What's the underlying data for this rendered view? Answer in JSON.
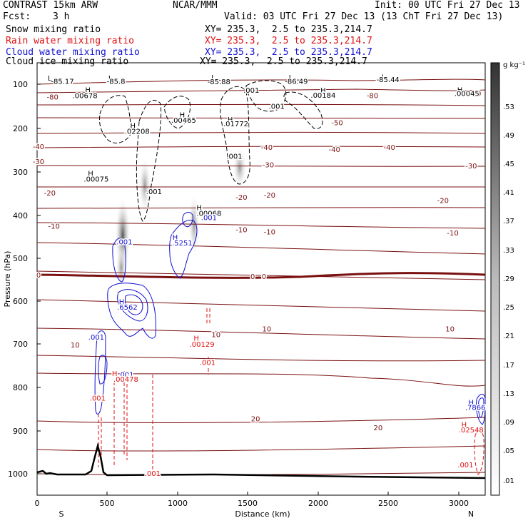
{
  "header": {
    "title": "CONTRAST 15km ARW",
    "org": "NCAR/MMM",
    "init": "Init: 00 UTC Fri 27 Dec 13",
    "fcst_label": "Fcst:",
    "fcst_value": "3 h",
    "valid": "Valid: 03 UTC Fri 27 Dec 13 (13 ChT Fri 27 Dec 13)",
    "fields": [
      {
        "name": "Snow mixing ratio",
        "xy": "XY= 235.3,  2.5 to 235.3,214.7",
        "color": "#000000"
      },
      {
        "name": "Rain water mixing ratio",
        "xy": "XY= 235.3,  2.5 to 235.3,214.7",
        "color": "#e01010"
      },
      {
        "name": "Cloud water mixing ratio",
        "xy": "XY= 235.3,  2.5 to 235.3,214.7",
        "color": "#1010d0"
      },
      {
        "name": "Cloud ice mixing ratio",
        "xy": "XY= 235.3,  2.5 to 235.3,214.7",
        "color": "#000000"
      }
    ]
  },
  "chart_data": {
    "type": "cross-section contour",
    "xlabel": "Distance (km)",
    "ylabel": "Pressure (hPa)",
    "xlim": [
      0,
      3180
    ],
    "ylim": [
      1050,
      50
    ],
    "xticks": [
      "0",
      "500",
      "1000",
      "1500",
      "2000",
      "2500",
      "3000"
    ],
    "yticks": [
      "100",
      "200",
      "300",
      "400",
      "500",
      "600",
      "700",
      "800",
      "900",
      "1000"
    ],
    "end_labels": {
      "left": "S",
      "right": "N"
    },
    "colorbar": {
      "unit": "g kg⁻¹",
      "ticks": [
        ".53",
        ".49",
        ".45",
        ".41",
        ".37",
        ".33",
        ".29",
        ".25",
        ".21",
        ".17",
        ".13",
        ".09",
        ".05",
        ".01"
      ]
    },
    "temperature_labels": [
      {
        "text": "-80",
        "x": 110,
        "p": 128
      },
      {
        "text": "-80",
        "x": 2380,
        "p": 125
      },
      {
        "text": "-80",
        "x": 3110,
        "p": 120
      },
      {
        "text": "-50",
        "x": 2130,
        "p": 188
      },
      {
        "text": "-40",
        "x": 0,
        "p": 243
      },
      {
        "text": "-40",
        "x": 1630,
        "p": 245
      },
      {
        "text": "-40",
        "x": 2110,
        "p": 250
      },
      {
        "text": "-40",
        "x": 2500,
        "p": 245
      },
      {
        "text": "-30",
        "x": 0,
        "p": 278
      },
      {
        "text": "-30",
        "x": 1640,
        "p": 285
      },
      {
        "text": "-30",
        "x": 3080,
        "p": 288
      },
      {
        "text": "-20",
        "x": 90,
        "p": 350
      },
      {
        "text": "-20",
        "x": 1450,
        "p": 360
      },
      {
        "text": "-20",
        "x": 1650,
        "p": 355
      },
      {
        "text": "-20",
        "x": 2880,
        "p": 368
      },
      {
        "text": "-10",
        "x": 120,
        "p": 427
      },
      {
        "text": "-10",
        "x": 1450,
        "p": 435
      },
      {
        "text": "-10",
        "x": 1650,
        "p": 440
      },
      {
        "text": "-10",
        "x": 2950,
        "p": 443
      },
      {
        "text": "0",
        "x": 0,
        "p": 540
      },
      {
        "text": "0",
        "x": 1530,
        "p": 543
      },
      {
        "text": "0",
        "x": 1610,
        "p": 543
      },
      {
        "text": "10",
        "x": 1630,
        "p": 665
      },
      {
        "text": "10",
        "x": 1270,
        "p": 678
      },
      {
        "text": "10",
        "x": 270,
        "p": 702
      },
      {
        "text": "10",
        "x": 2930,
        "p": 665
      },
      {
        "text": "20",
        "x": 1550,
        "p": 873
      },
      {
        "text": "20",
        "x": 2420,
        "p": 893
      }
    ],
    "cloud_ice_maxima": [
      {
        "text": "L",
        "x": 90,
        "p": 85
      },
      {
        "text": "-85.17",
        "x": 180,
        "p": 92
      },
      {
        "text": "L",
        "x": 520,
        "p": 85
      },
      {
        "text": "-85.8",
        "x": 560,
        "p": 92
      },
      {
        "text": "L",
        "x": 1250,
        "p": 83
      },
      {
        "text": "-85.88",
        "x": 1290,
        "p": 93
      },
      {
        "text": "L",
        "x": 1800,
        "p": 83
      },
      {
        "text": "-86.49",
        "x": 1840,
        "p": 92
      },
      {
        "text": "L",
        "x": 2460,
        "p": 82
      },
      {
        "text": "-85.44",
        "x": 2490,
        "p": 88
      },
      {
        "text": "H",
        "x": 360,
        "p": 112
      },
      {
        "text": ".00678",
        "x": 340,
        "p": 125
      },
      {
        "text": "H",
        "x": 2030,
        "p": 113
      },
      {
        "text": ".00184",
        "x": 2030,
        "p": 124
      },
      {
        "text": "H",
        "x": 3000,
        "p": 112
      },
      {
        "text": ".00045",
        "x": 3050,
        "p": 120
      },
      {
        "text": "H",
        "x": 1030,
        "p": 170
      },
      {
        "text": ".00465",
        "x": 1040,
        "p": 182
      },
      {
        "text": "H",
        "x": 1370,
        "p": 180
      },
      {
        "text": ".01772",
        "x": 1410,
        "p": 190
      },
      {
        "text": "H",
        "x": 680,
        "p": 194
      },
      {
        "text": ".02208",
        "x": 710,
        "p": 208
      },
      {
        "text": "H",
        "x": 380,
        "p": 305
      },
      {
        "text": ".00075",
        "x": 420,
        "p": 318
      },
      {
        "text": "H",
        "x": 1150,
        "p": 384
      },
      {
        "text": ".00068",
        "x": 1220,
        "p": 397
      },
      {
        "text": ".001",
        "x": 1520,
        "p": 113
      },
      {
        "text": ".001",
        "x": 1700,
        "p": 150
      },
      {
        "text": ".001",
        "x": 1400,
        "p": 265
      },
      {
        "text": ".001",
        "x": 830,
        "p": 347
      }
    ],
    "cloud_water_labels": [
      {
        "text": ".001",
        "x": 1220,
        "p": 407
      },
      {
        "text": "H",
        "x": 980,
        "p": 453
      },
      {
        "text": ".5251",
        "x": 1030,
        "p": 466
      },
      {
        "text": ".001",
        "x": 620,
        "p": 463
      },
      {
        "text": "H",
        "x": 600,
        "p": 602
      },
      {
        "text": ".6562",
        "x": 640,
        "p": 614
      },
      {
        "text": ".001",
        "x": 420,
        "p": 684
      },
      {
        "text": ".001",
        "x": 630,
        "p": 770
      },
      {
        "text": "H",
        "x": 3080,
        "p": 835
      },
      {
        "text": ".7866",
        "x": 3110,
        "p": 846
      }
    ],
    "rain_labels": [
      {
        "text": "H",
        "x": 1130,
        "p": 686
      },
      {
        "text": ".00129",
        "x": 1170,
        "p": 700
      },
      {
        "text": ".001",
        "x": 1210,
        "p": 742
      },
      {
        "text": "H",
        "x": 550,
        "p": 768
      },
      {
        "text": ".00478",
        "x": 630,
        "p": 781
      },
      {
        "text": ".001",
        "x": 430,
        "p": 825
      },
      {
        "text": ".001",
        "x": 820,
        "p": 999
      },
      {
        "text": "H",
        "x": 3030,
        "p": 886
      },
      {
        "text": ".02548",
        "x": 3080,
        "p": 898
      },
      {
        "text": ".001",
        "x": 3040,
        "p": 979
      }
    ]
  }
}
